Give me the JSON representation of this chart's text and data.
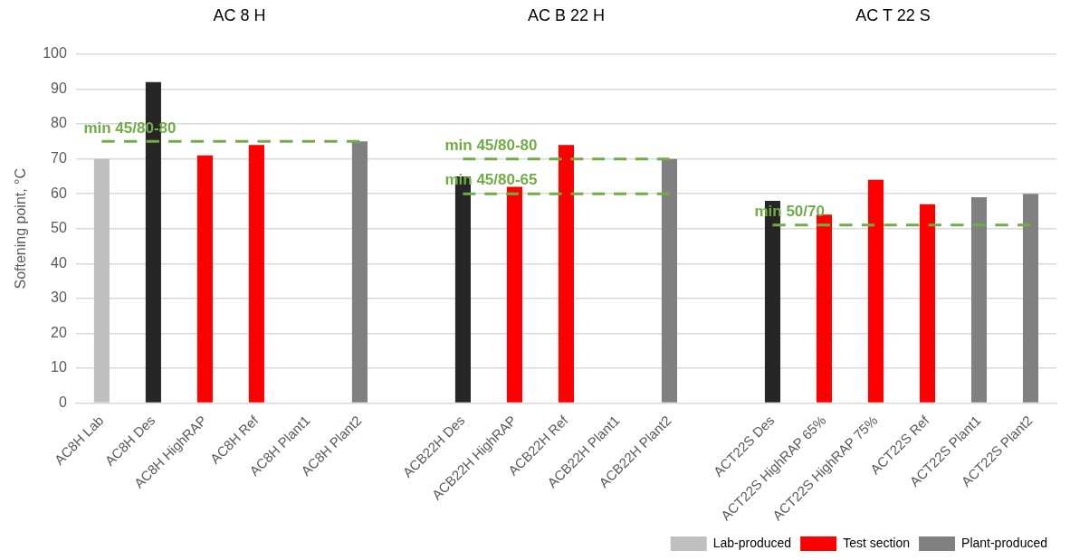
{
  "chart_data": {
    "type": "bar",
    "ylabel": "Softening point, °C",
    "annotations": [
      "AC 8 H",
      "AC B 22 H",
      "AC T 22 S"
    ],
    "categories": [
      "AC8H Lab",
      "AC8H Des",
      "AC8H HighRAP",
      "AC8H Ref",
      "AC8H Plant1",
      "AC8H Plant2",
      null,
      "ACB22H Des",
      "ACB22H HighRAP",
      "ACB22H Ref",
      "ACB22H Plant1",
      "ACB22H Plant2",
      null,
      "ACT22S Des",
      "ACT22S HighRAP 65%",
      "ACT22S HighRAP 75%",
      "ACT22S Ref",
      "ACT22S Plant1",
      "ACT22S Plant2"
    ],
    "series": [
      {
        "name": "Lab-produced",
        "color": "#bfbfbf",
        "colors": [
          "#bfbfbf",
          "#262626",
          null,
          null,
          null,
          null,
          null,
          "#262626",
          null,
          null,
          null,
          null,
          null,
          "#262626",
          null,
          null,
          null,
          null,
          null
        ],
        "values": [
          70,
          92,
          null,
          null,
          null,
          null,
          null,
          65,
          null,
          null,
          null,
          null,
          null,
          58,
          null,
          null,
          null,
          null,
          null
        ]
      },
      {
        "name": "Test section",
        "color": "#ff0000",
        "values": [
          null,
          null,
          71,
          74,
          null,
          null,
          null,
          null,
          62,
          74,
          null,
          null,
          null,
          null,
          54,
          64,
          57,
          null,
          null
        ]
      },
      {
        "name": "Plant-produced",
        "color": "#808080",
        "values": [
          null,
          null,
          null,
          null,
          null,
          75,
          null,
          null,
          null,
          null,
          null,
          70,
          null,
          null,
          null,
          null,
          null,
          59,
          60
        ]
      },
      {
        "name": "min 45/80-80",
        "type": "line",
        "color": "#70ad47",
        "line_style": "dashed",
        "marker": "none",
        "values": [
          75,
          75,
          75,
          75,
          75,
          75,
          null,
          null,
          null,
          null,
          null,
          null,
          null,
          null,
          null,
          null,
          null,
          null,
          null
        ]
      },
      {
        "name": "min 45/80-80",
        "type": "line",
        "color": "#70ad47",
        "line_style": "dashed",
        "marker": "none",
        "values": [
          null,
          null,
          null,
          null,
          null,
          null,
          null,
          70,
          70,
          70,
          70,
          70,
          null,
          null,
          null,
          null,
          null,
          null,
          null
        ]
      },
      {
        "name": "min 45/80-65",
        "type": "line",
        "color": "#70ad47",
        "line_style": "dashed",
        "marker": "none",
        "values": [
          null,
          null,
          null,
          null,
          null,
          null,
          null,
          60,
          60,
          60,
          60,
          60,
          null,
          null,
          null,
          null,
          null,
          null,
          null
        ]
      },
      {
        "name": "min 50/70",
        "type": "line",
        "color": "#70ad47",
        "line_style": "dashed",
        "marker": "none",
        "values": [
          null,
          null,
          null,
          null,
          null,
          null,
          null,
          null,
          null,
          null,
          null,
          null,
          null,
          51,
          51,
          51,
          51,
          51,
          51
        ]
      }
    ],
    "ylim": [
      0,
      100
    ],
    "yticks": [
      0,
      10,
      20,
      30,
      40,
      50,
      60,
      70,
      80,
      90,
      100
    ],
    "grid": "y",
    "legend": "bottom right"
  }
}
